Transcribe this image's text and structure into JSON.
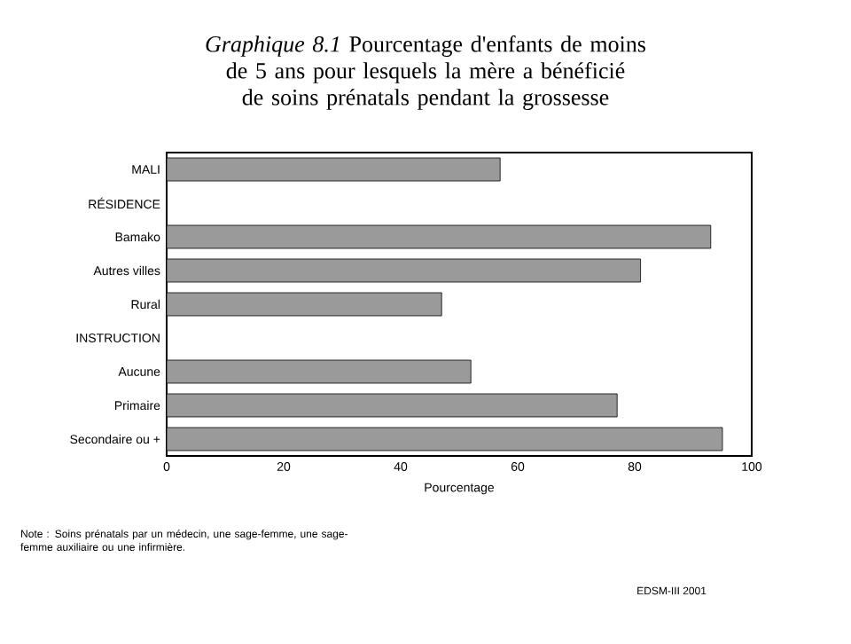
{
  "chart_data": {
    "type": "bar",
    "orientation": "horizontal",
    "title": "*Graphique 8.1*  Pourcentage d'enfants de moins de 5 ans pour lesquels la mère a bénéficié de soins prénatals pendant la grossesse",
    "categories": [
      "MALI",
      "RÉSIDENCE",
      "Bamako",
      "Autres villes",
      "Rural",
      "INSTRUCTION",
      "Aucune",
      "Primaire",
      "Secondaire ou +"
    ],
    "values": [
      57,
      null,
      93,
      81,
      47,
      null,
      52,
      77,
      95
    ],
    "color": "#9a9a9a",
    "xlim": [
      0,
      100
    ],
    "xticks": [
      0,
      20,
      40,
      60,
      80,
      100
    ],
    "xlabel": "Pourcentage",
    "annotations": [
      "Note : Soins prénatals par un médecin, une sage-femme, une sage-femme auxiliaire ou une infirmière.",
      "EDSM-III 2001"
    ]
  }
}
